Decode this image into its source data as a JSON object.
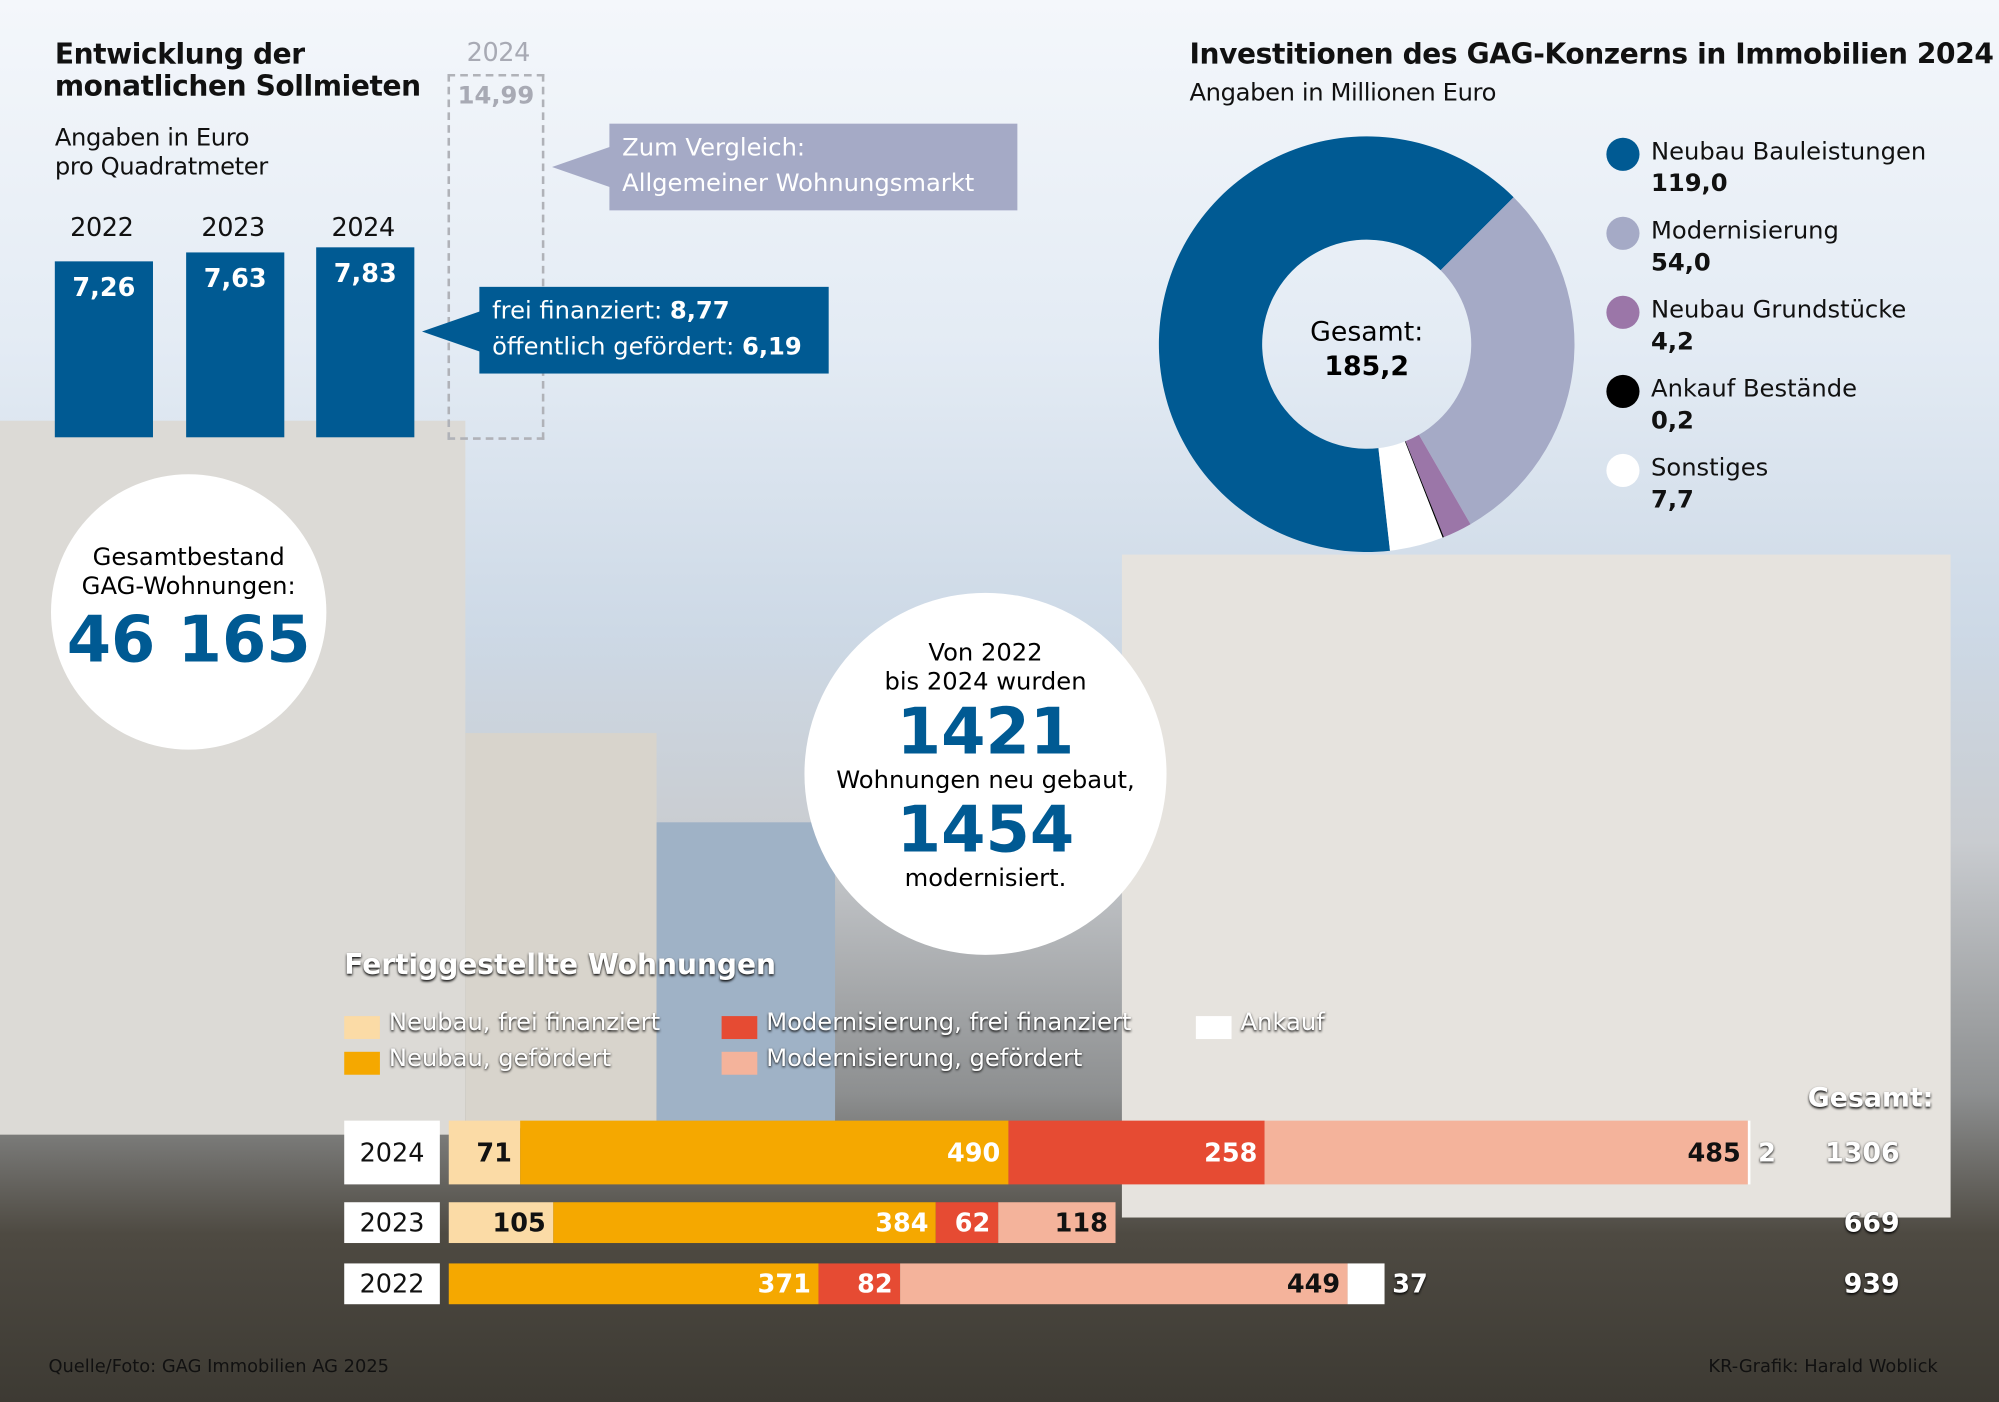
{
  "rent": {
    "title_line1": "Entwicklung der",
    "title_line2": "monatlichen Sollmieten",
    "subtitle_line1": "Angaben in Euro",
    "subtitle_line2": "pro Quadratmeter",
    "market_year": "2024",
    "market_value": "14,99",
    "market_callout_line1": "Zum Vergleich:",
    "market_callout_line2": "Allgemeiner Wohnungsmarkt",
    "detail_line1_label": "frei finanziert: ",
    "detail_line1_value": "8,77",
    "detail_line2_label": "öffentlich gefördert: ",
    "detail_line2_value": "6,19"
  },
  "stock": {
    "label_line1": "Gesamtbestand",
    "label_line2": "GAG-Wohnungen:",
    "value": "46 165"
  },
  "built": {
    "line1": "Von 2022",
    "line2": "bis 2024 wurden",
    "value1": "1421",
    "line3": "Wohnungen neu gebaut,",
    "value2": "1454",
    "line4": "modernisiert."
  },
  "invest": {
    "title": "Investitionen des GAG-Konzerns in Immobilien 2024",
    "subtitle": "Angaben in Millionen Euro",
    "center_label": "Gesamt:",
    "center_value": "185,2"
  },
  "completed": {
    "title": "Fertiggestellte Wohnungen",
    "total_header": "Gesamt:"
  },
  "footer": {
    "source": "Quelle/Foto: GAG Immobilien AG 2025",
    "credit": "KR-Grafik: Harald Woblick"
  },
  "colors": {
    "blue": "#005a93",
    "gray_callout": "#a5aac6",
    "neubau_frei": "#fbdba6",
    "neubau_gefoerdert": "#f5a800",
    "mod_frei": "#e64b33",
    "mod_gefoerdert": "#f4b39b",
    "ankauf": "#ffffff"
  },
  "chart_data": [
    {
      "type": "bar",
      "title": "Entwicklung der monatlichen Sollmieten",
      "ylabel": "Angaben in Euro pro Quadratmeter",
      "categories": [
        "2022",
        "2023",
        "2024"
      ],
      "values": [
        7.26,
        7.63,
        7.83
      ],
      "labels": [
        "7,26",
        "7,63",
        "7,83"
      ],
      "comparison": {
        "category": "2024",
        "value": 14.99,
        "label": "Allgemeiner Wohnungsmarkt"
      }
    },
    {
      "type": "pie",
      "title": "Investitionen des GAG-Konzerns in Immobilien 2024",
      "subtitle": "Angaben in Millionen Euro",
      "total": 185.2,
      "slices": [
        {
          "name": "Neubau Bauleistungen",
          "value": 119.0,
          "label": "119,0",
          "color": "#005a93"
        },
        {
          "name": "Modernisierung",
          "value": 54.0,
          "label": "54,0",
          "color": "#a5aac6"
        },
        {
          "name": "Neubau Grundstücke",
          "value": 4.2,
          "label": "4,2",
          "color": "#9b76a8"
        },
        {
          "name": "Ankauf Bestände",
          "value": 0.2,
          "label": "0,2",
          "color": "#000000"
        },
        {
          "name": "Sonstiges",
          "value": 7.7,
          "label": "7,7",
          "color": "#ffffff"
        }
      ]
    },
    {
      "type": "bar",
      "orientation": "horizontal",
      "stacked": true,
      "title": "Fertiggestellte Wohnungen",
      "categories": [
        "2024",
        "2023",
        "2022"
      ],
      "series": [
        {
          "name": "Neubau, frei finanziert",
          "color": "#fbdba6",
          "values": [
            71,
            105,
            0
          ]
        },
        {
          "name": "Neubau, gefördert",
          "color": "#f5a800",
          "values": [
            490,
            384,
            371
          ]
        },
        {
          "name": "Modernisierung, frei finanziert",
          "color": "#e64b33",
          "values": [
            258,
            62,
            82
          ]
        },
        {
          "name": "Modernisierung, gefördert",
          "color": "#f4b39b",
          "values": [
            485,
            118,
            449
          ]
        },
        {
          "name": "Ankauf",
          "color": "#ffffff",
          "values": [
            2,
            0,
            37
          ]
        }
      ],
      "totals": [
        1306,
        669,
        939
      ]
    }
  ]
}
